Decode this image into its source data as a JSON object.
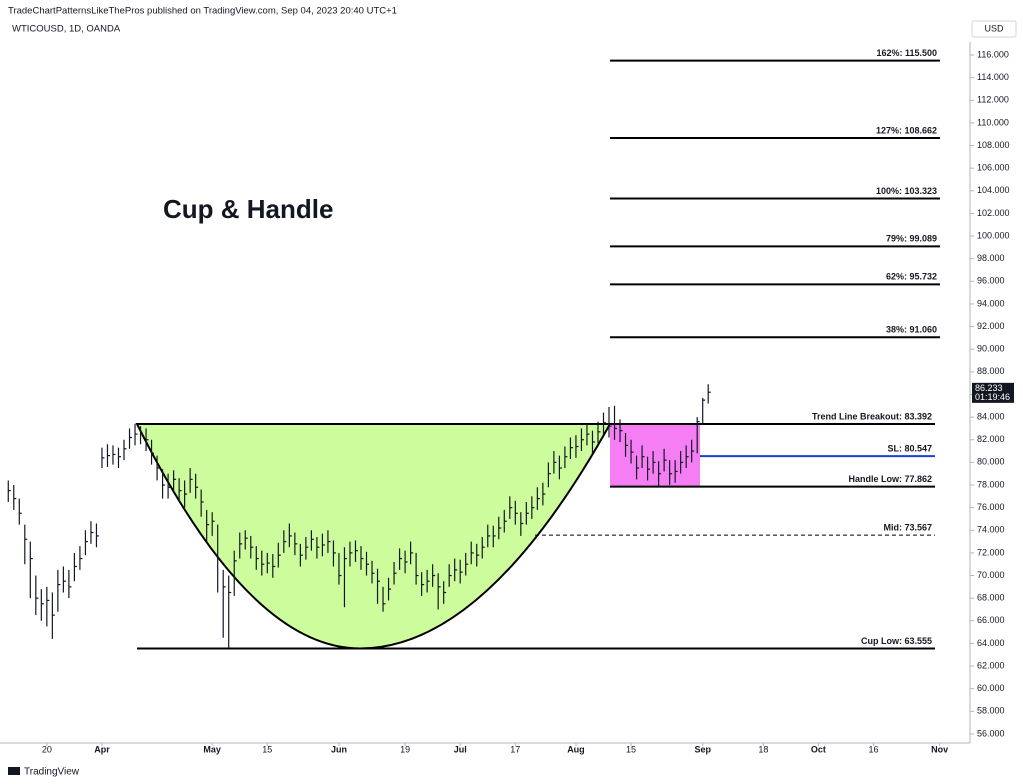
{
  "chart_data": {
    "type": "ohlc",
    "header": "TradeChartPatternsLikeThePros published on TradingView.com, Sep 04, 2023 20:40 UTC+1",
    "symbol": "WTICOUSD, 1D, OANDA",
    "currency": "USD",
    "title": "Cup & Handle",
    "footer": "TradingView",
    "last_price": {
      "value": 86.233,
      "label": "86.233"
    },
    "countdown": "01:19:46",
    "xlim": [
      -1.5,
      174.5
    ],
    "xticks": [
      {
        "value": 7,
        "label": "20"
      },
      {
        "value": 17,
        "label": "Apr"
      },
      {
        "value": 37,
        "label": "May"
      },
      {
        "value": 47,
        "label": "15"
      },
      {
        "value": 60,
        "label": "Jun"
      },
      {
        "value": 72,
        "label": "19"
      },
      {
        "value": 82,
        "label": "Jul"
      },
      {
        "value": 92,
        "label": "17"
      },
      {
        "value": 103,
        "label": "Aug"
      },
      {
        "value": 113,
        "label": "15"
      },
      {
        "value": 126,
        "label": "Sep"
      },
      {
        "value": 137,
        "label": "18"
      },
      {
        "value": 147,
        "label": "Oct"
      },
      {
        "value": 157,
        "label": "16"
      },
      {
        "value": 169,
        "label": "Nov"
      }
    ],
    "ylim": [
      55.2,
      117.15
    ],
    "yticks": [
      {
        "value": 56,
        "label": "56.000"
      },
      {
        "value": 58,
        "label": "58.000"
      },
      {
        "value": 60,
        "label": "60.000"
      },
      {
        "value": 62,
        "label": "62.000"
      },
      {
        "value": 64,
        "label": "64.000"
      },
      {
        "value": 66,
        "label": "66.000"
      },
      {
        "value": 68,
        "label": "68.000"
      },
      {
        "value": 70,
        "label": "70.000"
      },
      {
        "value": 72,
        "label": "72.000"
      },
      {
        "value": 74,
        "label": "74.000"
      },
      {
        "value": 76,
        "label": "76.000"
      },
      {
        "value": 78,
        "label": "78.000"
      },
      {
        "value": 80,
        "label": "80.000"
      },
      {
        "value": 82,
        "label": "82.000"
      },
      {
        "value": 84,
        "label": "84.000"
      },
      {
        "value": 86,
        "label": "86.000"
      },
      {
        "value": 88,
        "label": "88.000"
      },
      {
        "value": 90,
        "label": "90.000"
      },
      {
        "value": 92,
        "label": "92.000"
      },
      {
        "value": 94,
        "label": "94.000"
      },
      {
        "value": 96,
        "label": "96.000"
      },
      {
        "value": 98,
        "label": "98.000"
      },
      {
        "value": 100,
        "label": "100.000"
      },
      {
        "value": 102,
        "label": "102.000"
      },
      {
        "value": 104,
        "label": "104.000"
      },
      {
        "value": 106,
        "label": "106.000"
      },
      {
        "value": 108,
        "label": "108.000"
      },
      {
        "value": 110,
        "label": "110.000"
      },
      {
        "value": 112,
        "label": "112.000"
      },
      {
        "value": 114,
        "label": "114.000"
      },
      {
        "value": 116,
        "label": "116.000"
      }
    ],
    "levels": [
      {
        "label": "162%: 115.500",
        "value": 115.5,
        "color": "#000000",
        "style": "solid"
      },
      {
        "label": "127%: 108.662",
        "value": 108.662,
        "color": "#000000",
        "style": "solid"
      },
      {
        "label": "100%: 103.323",
        "value": 103.323,
        "color": "#000000",
        "style": "solid"
      },
      {
        "label": "79%: 99.089",
        "value": 99.089,
        "color": "#000000",
        "style": "solid"
      },
      {
        "label": "62%: 95.732",
        "value": 95.732,
        "color": "#000000",
        "style": "solid"
      },
      {
        "label": "38%: 91.060",
        "value": 91.06,
        "color": "#000000",
        "style": "solid"
      },
      {
        "label": "Trend Line Breakout: 83.392",
        "value": 83.392,
        "color": "#000000",
        "style": "solid"
      },
      {
        "label": "SL: 80.547",
        "value": 80.547,
        "color": "#1c3fd1",
        "style": "solid"
      },
      {
        "label": "Handle Low: 77.862",
        "value": 77.862,
        "color": "#000000",
        "style": "solid"
      },
      {
        "label": "Mid: 73.567",
        "value": 73.567,
        "color": "#000000",
        "style": "dashed"
      },
      {
        "label": "Cup Low: 63.555",
        "value": 63.555,
        "color": "#000000",
        "style": "solid"
      }
    ],
    "cup_color": "#cdfc9c",
    "handle_color": "#f57ef5",
    "series": [
      {
        "color": "#131722",
        "high": [
          78.4,
          78.0,
          76.8,
          74.5,
          73.0,
          70.0,
          68.8,
          69.0,
          68.5,
          70.5,
          70.8,
          70.5,
          72.0,
          72.6,
          74.0,
          74.8,
          74.6,
          81.3,
          81.6,
          81.5,
          81.3,
          82.0,
          83.0,
          83.4,
          83.2,
          83.0,
          82.0,
          80.6,
          79.4,
          79.0,
          79.3,
          78.6,
          78.4,
          79.5,
          79.0,
          77.6,
          75.8,
          75.6,
          74.5,
          70.5,
          70.0,
          72.2,
          73.8,
          74.0,
          73.5,
          72.6,
          72.2,
          72.0,
          71.9,
          72.9,
          74.0,
          74.6,
          73.8,
          72.8,
          73.4,
          74.0,
          73.4,
          73.7,
          74.0,
          73.1,
          72.0,
          72.5,
          73.0,
          73.1,
          72.6,
          72.1,
          71.3,
          70.6,
          69.0,
          69.8,
          71.2,
          72.4,
          72.2,
          73.0,
          72.0,
          70.3,
          70.5,
          71.0,
          70.2,
          69.5,
          71.0,
          71.5,
          71.4,
          72.0,
          73.0,
          72.8,
          73.4,
          74.5,
          74.4,
          75.2,
          75.8,
          77.0,
          76.6,
          75.6,
          76.5,
          77.0,
          77.8,
          78.2,
          80.0,
          81.0,
          80.6,
          81.4,
          82.2,
          82.4,
          83.0,
          83.4,
          82.8,
          83.6,
          84.4,
          84.9,
          85.0,
          83.8,
          82.6,
          82.0,
          80.6,
          81.5,
          80.5,
          81.0,
          80.1,
          81.2,
          80.2,
          80.2,
          81.0,
          81.5,
          82.0,
          84.0,
          85.7,
          86.9
        ],
        "low": [
          76.5,
          75.8,
          74.5,
          71.0,
          68.0,
          66.5,
          66.0,
          65.5,
          64.4,
          66.8,
          68.5,
          68.0,
          69.5,
          70.5,
          71.8,
          72.8,
          72.5,
          79.5,
          79.6,
          79.8,
          79.5,
          80.2,
          81.2,
          81.5,
          81.6,
          81.0,
          79.8,
          78.4,
          76.8,
          76.8,
          77.4,
          76.5,
          76.0,
          77.3,
          76.8,
          75.2,
          73.0,
          73.5,
          68.5,
          64.5,
          63.6,
          68.2,
          71.5,
          72.3,
          71.5,
          70.5,
          70.0,
          70.2,
          69.8,
          70.7,
          72.0,
          72.5,
          71.8,
          70.8,
          71.4,
          72.2,
          71.5,
          71.7,
          72.0,
          70.8,
          69.2,
          67.2,
          70.8,
          71.2,
          70.5,
          70.0,
          69.3,
          67.5,
          66.8,
          67.8,
          69.2,
          70.5,
          70.2,
          71.0,
          69.2,
          68.2,
          68.5,
          69.0,
          67.0,
          67.5,
          69.0,
          69.5,
          69.3,
          70.0,
          71.0,
          70.8,
          71.5,
          72.5,
          72.5,
          73.2,
          73.8,
          75.0,
          74.5,
          73.5,
          74.5,
          75.0,
          75.8,
          76.2,
          77.8,
          79.0,
          78.5,
          79.5,
          80.3,
          80.4,
          81.0,
          81.5,
          80.8,
          81.7,
          82.5,
          82.2,
          82.0,
          81.8,
          80.5,
          79.9,
          78.5,
          79.5,
          78.4,
          79.0,
          77.9,
          79.2,
          78.0,
          78.2,
          79.0,
          79.5,
          80.0,
          80.8,
          83.3,
          85.2
        ],
        "close": [
          77.5,
          76.8,
          75.5,
          73.2,
          71.5,
          68.0,
          67.5,
          67.8,
          66.5,
          69.2,
          69.5,
          69.0,
          70.8,
          71.5,
          73.0,
          73.8,
          73.5,
          80.4,
          80.6,
          80.7,
          80.5,
          81.2,
          82.2,
          82.5,
          82.5,
          82.0,
          80.8,
          79.5,
          78.0,
          77.8,
          78.5,
          77.5,
          77.2,
          78.5,
          77.8,
          76.5,
          74.5,
          74.8,
          71.5,
          69.0,
          68.5,
          71.3,
          72.8,
          73.3,
          72.5,
          71.5,
          71.0,
          71.1,
          70.8,
          71.8,
          73.0,
          73.5,
          72.8,
          71.8,
          72.5,
          73.2,
          72.5,
          72.7,
          73.0,
          72.0,
          70.0,
          71.5,
          72.0,
          72.2,
          71.5,
          71.0,
          70.2,
          69.5,
          67.5,
          68.8,
          70.2,
          71.5,
          71.2,
          72.0,
          70.0,
          69.2,
          69.5,
          70.0,
          69.0,
          68.5,
          70.0,
          70.5,
          70.3,
          71.0,
          72.0,
          71.8,
          72.5,
          73.5,
          73.5,
          74.2,
          74.8,
          76.0,
          75.5,
          74.6,
          75.5,
          76.0,
          76.8,
          77.2,
          79.0,
          80.0,
          79.5,
          80.5,
          81.3,
          81.4,
          82.0,
          82.5,
          81.8,
          82.7,
          83.5,
          83.2,
          83.0,
          82.8,
          81.5,
          80.9,
          79.5,
          80.5,
          79.4,
          80.0,
          79.0,
          80.2,
          79.0,
          79.2,
          80.0,
          80.5,
          81.0,
          83.6,
          85.5,
          86.2
        ]
      }
    ]
  }
}
